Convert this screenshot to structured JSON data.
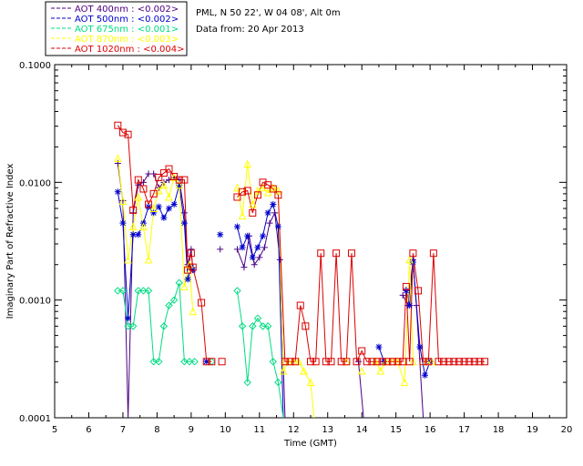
{
  "header": {
    "site_line": "PML, N 50 22', W 04 08', Alt 0m",
    "date_line": "Data from: 20 Apr 2013"
  },
  "legend": [
    {
      "label": "AOT  400nm : <0.002>",
      "color": "#4b0082"
    },
    {
      "label": "AOT  500nm : <0.002>",
      "color": "#0000cd"
    },
    {
      "label": "AOT  675nm : <0.001>",
      "color": "#00dc82"
    },
    {
      "label": "AOT  870nm : <0.003>",
      "color": "#ffff00"
    },
    {
      "label": "AOT 1020nm : <0.004>",
      "color": "#dc0000"
    }
  ],
  "chart_data": {
    "type": "line",
    "title": "",
    "xlabel": "Time (GMT)",
    "ylabel": "Imaginary Part of Refractive Index",
    "xlim": [
      5,
      20
    ],
    "ylim": [
      0.0001,
      0.1
    ],
    "yscale": "log",
    "xticks": [
      "5",
      "6",
      "7",
      "8",
      "9",
      "10",
      "11",
      "12",
      "13",
      "14",
      "15",
      "16",
      "17",
      "18",
      "19",
      "20"
    ],
    "yticks": [
      {
        "v": 0.0001,
        "label": "0.0001"
      },
      {
        "v": 0.001,
        "label": "0.0010"
      },
      {
        "v": 0.01,
        "label": "0.0100"
      },
      {
        "v": 0.1,
        "label": "0.1000"
      }
    ],
    "series": [
      {
        "name": "AOT 400nm",
        "color": "#4b0082",
        "marker": "plus",
        "segments": [
          [
            [
              6.85,
              0.0145
            ],
            [
              7.0,
              0.007
            ],
            [
              7.15,
              0.0001
            ],
            [
              7.3,
              0.0055
            ],
            [
              7.45,
              0.0095
            ],
            [
              7.6,
              0.01
            ],
            [
              7.75,
              0.0118
            ],
            [
              7.9,
              0.0118
            ],
            [
              8.05,
              0.009
            ],
            [
              8.2,
              0.01
            ],
            [
              8.35,
              0.0105
            ],
            [
              8.5,
              0.011
            ],
            [
              8.65,
              0.0105
            ],
            [
              8.8,
              0.0055
            ],
            [
              8.9,
              0.002
            ],
            [
              9.0,
              0.0027
            ],
            [
              9.05,
              0.0018
            ]
          ],
          [
            [
              9.85,
              0.0027
            ]
          ],
          [
            [
              10.35,
              0.0027
            ],
            [
              10.55,
              0.0019
            ],
            [
              10.7,
              0.0035
            ],
            [
              10.85,
              0.002
            ],
            [
              11.0,
              0.0023
            ],
            [
              11.15,
              0.0028
            ],
            [
              11.3,
              0.0045
            ],
            [
              11.45,
              0.0055
            ],
            [
              11.6,
              0.0022
            ],
            [
              11.75,
              0.0001
            ]
          ],
          [
            [
              13.9,
              0.0003
            ],
            [
              14.05,
              0.0001
            ]
          ],
          [
            [
              15.2,
              0.0011
            ],
            [
              15.35,
              0.0009
            ],
            [
              15.5,
              0.0022
            ],
            [
              15.6,
              0.0009
            ],
            [
              15.8,
              0.0001
            ]
          ]
        ]
      },
      {
        "name": "AOT 500nm",
        "color": "#0000cd",
        "marker": "asterisk",
        "segments": [
          [
            [
              6.85,
              0.0083
            ],
            [
              7.0,
              0.0045
            ],
            [
              7.15,
              0.0007
            ],
            [
              7.3,
              0.0036
            ],
            [
              7.45,
              0.0036
            ],
            [
              7.6,
              0.0045
            ],
            [
              7.75,
              0.0062
            ],
            [
              7.9,
              0.0055
            ],
            [
              8.05,
              0.0062
            ],
            [
              8.2,
              0.005
            ],
            [
              8.35,
              0.006
            ],
            [
              8.5,
              0.0065
            ],
            [
              8.65,
              0.0095
            ],
            [
              8.8,
              0.0045
            ],
            [
              8.9,
              0.0015
            ],
            [
              9.0,
              0.0019
            ],
            [
              9.05,
              0.0018
            ]
          ],
          [
            [
              9.45,
              0.0003
            ]
          ],
          [
            [
              9.85,
              0.0036
            ]
          ],
          [
            [
              10.35,
              0.0042
            ],
            [
              10.5,
              0.0028
            ],
            [
              10.65,
              0.0035
            ],
            [
              10.8,
              0.0023
            ],
            [
              10.95,
              0.0028
            ],
            [
              11.1,
              0.0035
            ],
            [
              11.25,
              0.0055
            ],
            [
              11.4,
              0.0065
            ],
            [
              11.55,
              0.0042
            ],
            [
              11.7,
              0.0001
            ]
          ],
          [
            [
              14.5,
              0.0004
            ],
            [
              14.65,
              0.0003
            ]
          ],
          [
            [
              15.3,
              0.0012
            ],
            [
              15.4,
              0.0009
            ],
            [
              15.5,
              0.0021
            ],
            [
              15.7,
              0.0004
            ],
            [
              15.85,
              0.00023
            ],
            [
              16.0,
              0.0003
            ]
          ]
        ]
      },
      {
        "name": "AOT 675nm",
        "color": "#00dc82",
        "marker": "diamond",
        "segments": [
          [
            [
              6.85,
              0.0012
            ],
            [
              7.0,
              0.0012
            ],
            [
              7.15,
              0.0006
            ],
            [
              7.3,
              0.0006
            ],
            [
              7.45,
              0.0012
            ],
            [
              7.6,
              0.0012
            ],
            [
              7.75,
              0.0012
            ],
            [
              7.9,
              0.0003
            ],
            [
              8.05,
              0.0003
            ],
            [
              8.2,
              0.0006
            ],
            [
              8.35,
              0.0009
            ],
            [
              8.5,
              0.001
            ],
            [
              8.65,
              0.0014
            ],
            [
              8.8,
              0.0003
            ],
            [
              8.95,
              0.0003
            ],
            [
              9.1,
              0.0003
            ]
          ],
          [
            [
              9.6,
              0.0003
            ]
          ],
          [
            [
              10.35,
              0.0012
            ],
            [
              10.5,
              0.0006
            ],
            [
              10.65,
              0.0002
            ],
            [
              10.8,
              0.0006
            ],
            [
              10.95,
              0.0007
            ],
            [
              11.1,
              0.0006
            ],
            [
              11.25,
              0.0006
            ],
            [
              11.4,
              0.0003
            ],
            [
              11.55,
              0.0002
            ],
            [
              11.7,
              0.0001
            ]
          ]
        ]
      },
      {
        "name": "AOT 870nm",
        "color": "#ffff00",
        "marker": "triangle",
        "segments": [
          [
            [
              6.85,
              0.016
            ],
            [
              7.0,
              0.0069
            ],
            [
              7.15,
              0.0022
            ],
            [
              7.3,
              0.0042
            ],
            [
              7.45,
              0.0075
            ],
            [
              7.6,
              0.0042
            ],
            [
              7.75,
              0.0022
            ],
            [
              7.9,
              0.006
            ],
            [
              8.05,
              0.0085
            ],
            [
              8.2,
              0.0095
            ],
            [
              8.35,
              0.0075
            ],
            [
              8.5,
              0.011
            ],
            [
              8.65,
              0.0095
            ],
            [
              8.8,
              0.0013
            ],
            [
              8.95,
              0.002
            ],
            [
              9.05,
              0.0008
            ]
          ],
          [
            [
              10.35,
              0.009
            ],
            [
              10.5,
              0.0052
            ],
            [
              10.65,
              0.0143
            ],
            [
              10.8,
              0.0065
            ],
            [
              10.95,
              0.0085
            ],
            [
              11.1,
              0.009
            ],
            [
              11.25,
              0.0082
            ],
            [
              11.4,
              0.009
            ],
            [
              11.55,
              0.0085
            ],
            [
              11.7,
              0.00025
            ],
            [
              11.85,
              0.0003
            ],
            [
              12.0,
              0.0003
            ],
            [
              12.15,
              0.0003
            ],
            [
              12.3,
              0.00025
            ],
            [
              12.5,
              0.0002
            ],
            [
              12.6,
              0.0001
            ]
          ],
          [
            [
              13.55,
              0.0003
            ]
          ],
          [
            [
              14.0,
              0.00025
            ]
          ],
          [
            [
              14.4,
              0.0003
            ],
            [
              14.55,
              0.00025
            ],
            [
              14.7,
              0.0003
            ],
            [
              14.9,
              0.0003
            ],
            [
              15.05,
              0.0003
            ],
            [
              15.25,
              0.0002
            ],
            [
              15.4,
              0.0022
            ],
            [
              15.5,
              0.0003
            ]
          ],
          [
            [
              15.9,
              0.0003
            ],
            [
              16.05,
              0.0003
            ]
          ]
        ]
      },
      {
        "name": "AOT 1020nm",
        "color": "#dc0000",
        "marker": "square",
        "segments": [
          [
            [
              6.85,
              0.0305
            ],
            [
              7.0,
              0.0265
            ],
            [
              7.15,
              0.0255
            ],
            [
              7.3,
              0.0058
            ],
            [
              7.45,
              0.0105
            ],
            [
              7.6,
              0.0088
            ],
            [
              7.75,
              0.0065
            ],
            [
              7.9,
              0.008
            ],
            [
              8.05,
              0.011
            ],
            [
              8.2,
              0.012
            ],
            [
              8.35,
              0.013
            ],
            [
              8.5,
              0.0112
            ],
            [
              8.65,
              0.0105
            ],
            [
              8.8,
              0.0105
            ],
            [
              8.9,
              0.0018
            ],
            [
              9.0,
              0.0025
            ],
            [
              9.05,
              0.0019
            ],
            [
              9.3,
              0.00095
            ],
            [
              9.45,
              0.0003
            ],
            [
              9.6,
              0.0003
            ]
          ],
          [
            [
              9.9,
              0.0003
            ]
          ],
          [
            [
              10.35,
              0.0075
            ],
            [
              10.5,
              0.0083
            ],
            [
              10.65,
              0.0085
            ],
            [
              10.8,
              0.0055
            ],
            [
              10.95,
              0.0078
            ],
            [
              11.1,
              0.01
            ],
            [
              11.25,
              0.0095
            ],
            [
              11.4,
              0.0088
            ],
            [
              11.55,
              0.0078
            ],
            [
              11.75,
              0.0003
            ],
            [
              11.9,
              0.0003
            ],
            [
              12.05,
              0.0003
            ],
            [
              12.2,
              0.0009
            ],
            [
              12.35,
              0.0006
            ],
            [
              12.5,
              0.0003
            ],
            [
              12.65,
              0.0003
            ],
            [
              12.8,
              0.0025
            ],
            [
              12.95,
              0.0003
            ],
            [
              13.1,
              0.0003
            ],
            [
              13.25,
              0.0025
            ],
            [
              13.4,
              0.0003
            ],
            [
              13.55,
              0.0003
            ],
            [
              13.7,
              0.0025
            ],
            [
              13.85,
              0.0003
            ],
            [
              14.0,
              0.00037
            ],
            [
              14.15,
              0.0003
            ],
            [
              14.3,
              0.0003
            ],
            [
              14.45,
              0.0003
            ],
            [
              14.6,
              0.0003
            ],
            [
              14.75,
              0.0003
            ],
            [
              14.9,
              0.0003
            ],
            [
              15.05,
              0.0003
            ],
            [
              15.2,
              0.0003
            ],
            [
              15.3,
              0.0013
            ],
            [
              15.4,
              0.0003
            ],
            [
              15.5,
              0.0025
            ],
            [
              15.65,
              0.0012
            ],
            [
              15.8,
              0.0003
            ],
            [
              15.95,
              0.0003
            ],
            [
              16.1,
              0.0025
            ],
            [
              16.25,
              0.0003
            ],
            [
              16.4,
              0.0003
            ],
            [
              16.55,
              0.0003
            ],
            [
              16.7,
              0.0003
            ],
            [
              16.85,
              0.0003
            ],
            [
              17.0,
              0.0003
            ],
            [
              17.15,
              0.0003
            ],
            [
              17.3,
              0.0003
            ],
            [
              17.45,
              0.0003
            ],
            [
              17.6,
              0.0003
            ]
          ]
        ]
      }
    ]
  }
}
